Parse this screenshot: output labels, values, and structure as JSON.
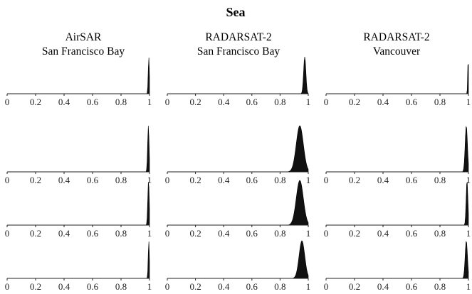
{
  "title": "Sea",
  "columns": [
    {
      "line1": "AirSAR",
      "line2": "San Francisco Bay"
    },
    {
      "line1": "RADARSAT-2",
      "line2": "San Francisco Bay"
    },
    {
      "line1": "RADARSAT-2",
      "line2": "Vancouver"
    }
  ],
  "chart_data": {
    "type": "area",
    "title": "Sea",
    "grid": false,
    "xlim": [
      0,
      1
    ],
    "xticks": [
      "0",
      "0.2",
      "0.4",
      "0.6",
      "0.8",
      "1"
    ],
    "panels": [
      {
        "row": 1,
        "column": "AirSAR San Francisco Bay",
        "peak_x": 0.995,
        "spread": 0.004
      },
      {
        "row": 1,
        "column": "RADARSAT-2 San Francisco Bay",
        "peak_x": 0.975,
        "spread": 0.008
      },
      {
        "row": 1,
        "column": "RADARSAT-2 Vancouver",
        "peak_x": 0.998,
        "spread": 0.003
      },
      {
        "row": 2,
        "column": "AirSAR San Francisco Bay",
        "peak_x": 0.992,
        "spread": 0.005
      },
      {
        "row": 2,
        "column": "RADARSAT-2 San Francisco Bay",
        "peak_x": 0.94,
        "spread": 0.025
      },
      {
        "row": 2,
        "column": "RADARSAT-2 Vancouver",
        "peak_x": 0.985,
        "spread": 0.008
      },
      {
        "row": 3,
        "column": "AirSAR San Francisco Bay",
        "peak_x": 0.993,
        "spread": 0.005
      },
      {
        "row": 3,
        "column": "RADARSAT-2 San Francisco Bay",
        "peak_x": 0.94,
        "spread": 0.025
      },
      {
        "row": 3,
        "column": "RADARSAT-2 Vancouver",
        "peak_x": 0.99,
        "spread": 0.006
      },
      {
        "row": 4,
        "column": "AirSAR San Francisco Bay",
        "peak_x": 0.995,
        "spread": 0.004
      },
      {
        "row": 4,
        "column": "RADARSAT-2 San Francisco Bay",
        "peak_x": 0.955,
        "spread": 0.02
      },
      {
        "row": 4,
        "column": "RADARSAT-2 Vancouver",
        "peak_x": 0.985,
        "spread": 0.008
      }
    ]
  }
}
